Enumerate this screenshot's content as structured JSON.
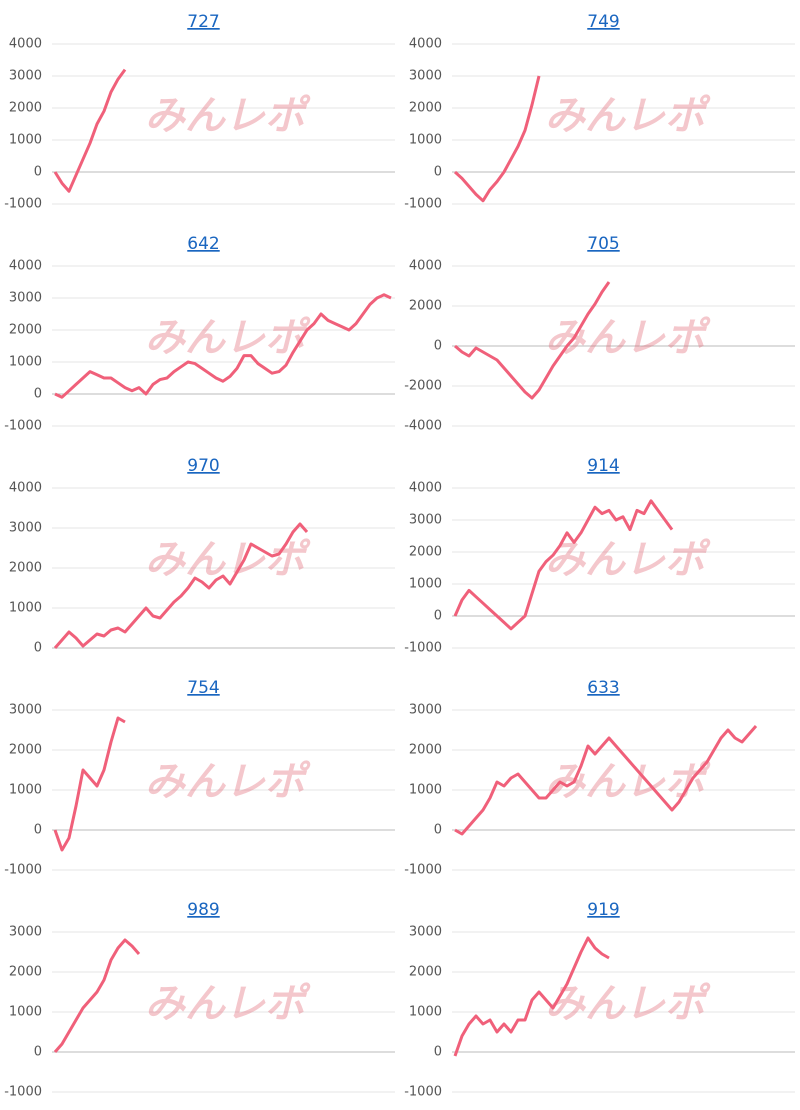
{
  "watermark": "みんレポ",
  "chart_data": [
    {
      "type": "line",
      "title": "727",
      "color": "#f0607a",
      "ylim": [
        -1000,
        4000
      ],
      "yticks": [
        -1000,
        0,
        1000,
        2000,
        3000,
        4000
      ],
      "values": [
        0,
        -350,
        -600,
        -100,
        400,
        900,
        1500,
        1900,
        2500,
        2900,
        3200
      ]
    },
    {
      "type": "line",
      "title": "749",
      "color": "#f0607a",
      "ylim": [
        -1000,
        4000
      ],
      "yticks": [
        -1000,
        0,
        1000,
        2000,
        3000,
        4000
      ],
      "values": [
        0,
        -200,
        -450,
        -700,
        -900,
        -550,
        -300,
        0,
        400,
        800,
        1300,
        2100,
        3000
      ]
    },
    {
      "type": "line",
      "title": "642",
      "color": "#f0607a",
      "ylim": [
        -1000,
        4000
      ],
      "yticks": [
        -1000,
        0,
        1000,
        2000,
        3000,
        4000
      ],
      "values": [
        0,
        -100,
        100,
        300,
        500,
        700,
        600,
        500,
        500,
        350,
        200,
        100,
        200,
        0,
        300,
        450,
        500,
        700,
        850,
        1000,
        950,
        800,
        650,
        500,
        400,
        550,
        800,
        1200,
        1200,
        950,
        800,
        650,
        700,
        900,
        1300,
        1650,
        2000,
        2200,
        2500,
        2300,
        2200,
        2100,
        2000,
        2200,
        2500,
        2800,
        3000,
        3100,
        3000
      ]
    },
    {
      "type": "line",
      "title": "705",
      "color": "#f0607a",
      "ylim": [
        -4000,
        4000
      ],
      "yticks": [
        -4000,
        -2000,
        0,
        2000,
        4000
      ],
      "values": [
        0,
        -300,
        -500,
        -100,
        -300,
        -500,
        -700,
        -1100,
        -1500,
        -1900,
        -2300,
        -2600,
        -2200,
        -1600,
        -1000,
        -500,
        0,
        400,
        1000,
        1600,
        2100,
        2700,
        3200
      ]
    },
    {
      "type": "line",
      "title": "970",
      "color": "#f0607a",
      "ylim": [
        0,
        4000
      ],
      "yticks": [
        0,
        1000,
        2000,
        3000,
        4000
      ],
      "values": [
        0,
        200,
        400,
        250,
        50,
        200,
        350,
        300,
        450,
        500,
        400,
        600,
        800,
        1000,
        800,
        750,
        950,
        1150,
        1300,
        1500,
        1750,
        1650,
        1500,
        1700,
        1800,
        1600,
        1900,
        2200,
        2600,
        2500,
        2400,
        2300,
        2350,
        2600,
        2900,
        3100,
        2900
      ]
    },
    {
      "type": "line",
      "title": "914",
      "color": "#f0607a",
      "ylim": [
        -1000,
        4000
      ],
      "yticks": [
        -1000,
        0,
        1000,
        2000,
        3000,
        4000
      ],
      "values": [
        0,
        500,
        800,
        600,
        400,
        200,
        0,
        -200,
        -400,
        -200,
        0,
        700,
        1400,
        1700,
        1900,
        2200,
        2600,
        2300,
        2600,
        3000,
        3400,
        3200,
        3300,
        3000,
        3100,
        2700,
        3300,
        3200,
        3600,
        3300,
        3000,
        2700
      ]
    },
    {
      "type": "line",
      "title": "754",
      "color": "#f0607a",
      "ylim": [
        -1000,
        3000
      ],
      "yticks": [
        -1000,
        0,
        1000,
        2000,
        3000
      ],
      "values": [
        0,
        -500,
        -200,
        600,
        1500,
        1300,
        1100,
        1500,
        2200,
        2800,
        2700
      ]
    },
    {
      "type": "line",
      "title": "633",
      "color": "#f0607a",
      "ylim": [
        -1000,
        3000
      ],
      "yticks": [
        -1000,
        0,
        1000,
        2000,
        3000
      ],
      "values": [
        0,
        -100,
        100,
        300,
        500,
        800,
        1200,
        1100,
        1300,
        1400,
        1200,
        1000,
        800,
        800,
        1000,
        1200,
        1100,
        1200,
        1600,
        2100,
        1900,
        2100,
        2300,
        2100,
        1900,
        1700,
        1500,
        1300,
        1100,
        900,
        700,
        500,
        700,
        1000,
        1300,
        1500,
        1700,
        2000,
        2300,
        2500,
        2300,
        2200,
        2400,
        2600
      ]
    },
    {
      "type": "line",
      "title": "989",
      "color": "#f0607a",
      "ylim": [
        -1000,
        3000
      ],
      "yticks": [
        -1000,
        0,
        1000,
        2000,
        3000
      ],
      "values": [
        0,
        200,
        500,
        800,
        1100,
        1300,
        1500,
        1800,
        2300,
        2600,
        2800,
        2650,
        2450
      ]
    },
    {
      "type": "line",
      "title": "919",
      "color": "#f0607a",
      "ylim": [
        -1000,
        3000
      ],
      "yticks": [
        -1000,
        0,
        1000,
        2000,
        3000
      ],
      "values": [
        -100,
        400,
        700,
        900,
        700,
        800,
        500,
        700,
        500,
        800,
        800,
        1300,
        1500,
        1300,
        1100,
        1400,
        1700,
        2100,
        2500,
        2850,
        2600,
        2450,
        2350
      ]
    }
  ]
}
